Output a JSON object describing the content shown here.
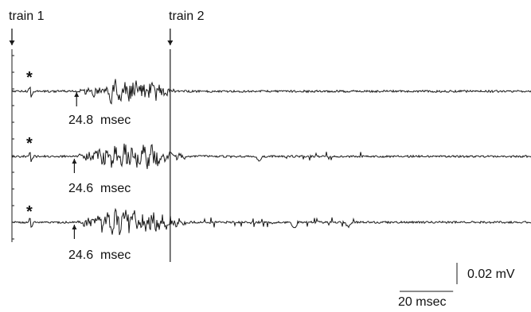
{
  "chart_data": {
    "type": "line",
    "title": "",
    "xlabel": "",
    "ylabel": "",
    "time_unit": "msec",
    "amplitude_unit": "mV",
    "x_range_msec": [
      0,
      233
    ],
    "markers": [
      {
        "label": "train 1",
        "t_msec": 0
      },
      {
        "label": "train 2",
        "t_msec": 71
      }
    ],
    "stimulus_symbol": "*",
    "stimulus_t_msec": 8.5,
    "traces": [
      {
        "latency_value": "24.8",
        "latency_unit": "msec",
        "latency_t_msec": 29
      },
      {
        "latency_value": "24.6",
        "latency_unit": "msec",
        "latency_t_msec": 28
      },
      {
        "latency_value": "24.6",
        "latency_unit": "msec",
        "latency_t_msec": 28
      }
    ],
    "scale_bar": {
      "amplitude_label": "0.02 mV",
      "amplitude_mV": 0.02,
      "time_label": "20 msec",
      "time_msec": 20
    },
    "grid": false,
    "legend": "none"
  },
  "colors": {
    "trace": "#1a1a1a",
    "background": "#ffffff"
  }
}
